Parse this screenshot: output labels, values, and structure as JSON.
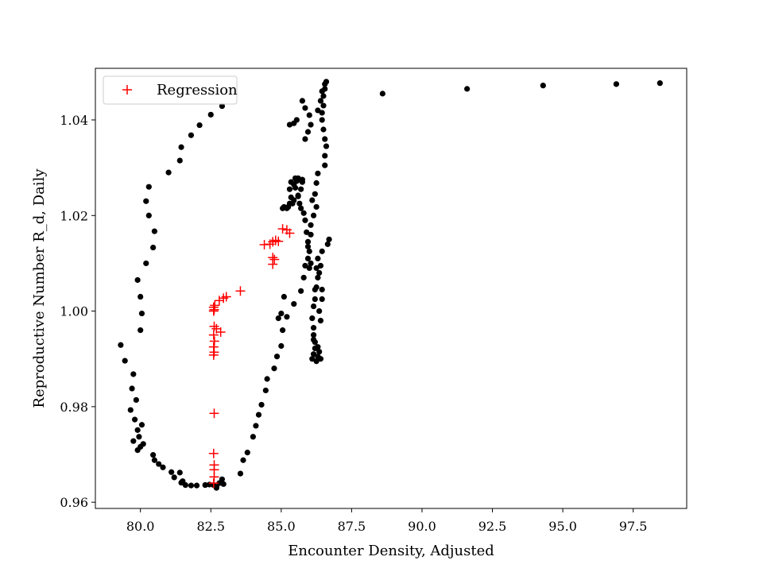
{
  "chart_data": {
    "type": "scatter",
    "xlabel": "Encounter Density, Adjusted",
    "ylabel": "Reproductive Number R_d, Daily",
    "xlim": [
      78.4,
      99.4
    ],
    "ylim": [
      0.9587,
      1.0508
    ],
    "xticks": [
      "80.0",
      "82.5",
      "85.0",
      "87.5",
      "90.0",
      "92.5",
      "95.0",
      "97.5"
    ],
    "xtick_values": [
      80.0,
      82.5,
      85.0,
      87.5,
      90.0,
      92.5,
      95.0,
      97.5
    ],
    "yticks": [
      "0.96",
      "0.98",
      "1.00",
      "1.02",
      "1.04"
    ],
    "ytick_values": [
      0.96,
      0.98,
      1.0,
      1.02,
      1.04
    ],
    "grid": false,
    "legend": {
      "position": "top-left",
      "entries": [
        "Regression"
      ]
    },
    "series": [
      {
        "name": "",
        "marker": "circle",
        "color": "#000000",
        "points": [
          [
            79.3,
            0.9929
          ],
          [
            79.45,
            0.9896
          ],
          [
            79.65,
            0.9793
          ],
          [
            79.7,
            0.9838
          ],
          [
            79.75,
            0.9868
          ],
          [
            79.8,
            0.9773
          ],
          [
            79.85,
            0.9814
          ],
          [
            79.9,
            0.9751
          ],
          [
            79.95,
            0.9737
          ],
          [
            80.05,
            0.9762
          ],
          [
            79.75,
            0.9728
          ],
          [
            79.9,
            0.9709
          ],
          [
            80.0,
            0.9716
          ],
          [
            80.1,
            0.9722
          ],
          [
            80.45,
            0.9699
          ],
          [
            80.5,
            0.9688
          ],
          [
            80.65,
            0.968
          ],
          [
            80.8,
            0.9673
          ],
          [
            81.1,
            0.9663
          ],
          [
            81.2,
            0.9652
          ],
          [
            81.4,
            0.9662
          ],
          [
            81.5,
            0.9644
          ],
          [
            81.45,
            0.9641
          ],
          [
            81.6,
            0.9636
          ],
          [
            81.8,
            0.9635
          ],
          [
            82.0,
            0.9635
          ],
          [
            82.3,
            0.9636
          ],
          [
            82.45,
            0.9637
          ],
          [
            82.6,
            0.9636
          ],
          [
            82.7,
            0.9632
          ],
          [
            82.8,
            0.964
          ],
          [
            82.9,
            0.9648
          ],
          [
            82.95,
            0.9638
          ],
          [
            82.7,
            0.963
          ],
          [
            83.55,
            0.966
          ],
          [
            83.65,
            0.9688
          ],
          [
            83.8,
            0.9704
          ],
          [
            84.0,
            0.9737
          ],
          [
            84.1,
            0.976
          ],
          [
            84.2,
            0.9783
          ],
          [
            84.3,
            0.9804
          ],
          [
            84.45,
            0.9834
          ],
          [
            84.5,
            0.9858
          ],
          [
            84.75,
            0.988
          ],
          [
            84.85,
            0.9905
          ],
          [
            85.0,
            0.9927
          ],
          [
            85.05,
            0.996
          ],
          [
            85.2,
            0.9988
          ],
          [
            85.45,
            1.0015
          ],
          [
            85.7,
            1.0042
          ],
          [
            85.8,
            1.007
          ],
          [
            85.85,
            1.0095
          ],
          [
            85.95,
            1.0135
          ],
          [
            86.05,
            1.016
          ],
          [
            86.05,
            1.018
          ],
          [
            86.15,
            1.02
          ],
          [
            86.25,
            1.0218
          ],
          [
            86.1,
            1.0232
          ],
          [
            86.2,
            1.0245
          ],
          [
            86.25,
            1.0268
          ],
          [
            86.3,
            1.0288
          ],
          [
            86.55,
            1.0305
          ],
          [
            86.55,
            1.0325
          ],
          [
            86.6,
            1.0345
          ],
          [
            86.55,
            1.036
          ],
          [
            86.5,
            1.038
          ],
          [
            86.45,
            1.04
          ],
          [
            86.45,
            1.0415
          ],
          [
            86.5,
            1.043
          ],
          [
            86.5,
            1.045
          ],
          [
            86.55,
            1.0465
          ],
          [
            86.6,
            1.048
          ],
          [
            86.55,
            1.0475
          ],
          [
            86.45,
            1.046
          ],
          [
            86.4,
            1.044
          ],
          [
            86.3,
            1.042
          ],
          [
            86.3,
            1.011
          ],
          [
            86.25,
            1.009
          ],
          [
            86.3,
            1.007
          ],
          [
            86.2,
            1.0045
          ],
          [
            86.2,
            1.0025
          ],
          [
            86.15,
            1.001
          ],
          [
            86.1,
            0.9985
          ],
          [
            86.15,
            0.9965
          ],
          [
            86.15,
            0.995
          ],
          [
            86.2,
            0.9935
          ],
          [
            86.3,
            0.9925
          ],
          [
            86.35,
            0.9915
          ],
          [
            86.3,
            0.9905
          ],
          [
            86.4,
            0.99
          ],
          [
            86.25,
            0.9895
          ],
          [
            86.1,
            0.99
          ],
          [
            86.15,
            0.991
          ],
          [
            86.2,
            0.9922
          ],
          [
            86.15,
            0.994
          ],
          [
            86.0,
            1.009
          ],
          [
            85.95,
            1.011
          ],
          [
            86.0,
            1.0125
          ],
          [
            85.95,
            1.0145
          ],
          [
            85.9,
            1.0165
          ],
          [
            85.85,
            1.019
          ],
          [
            85.8,
            1.0205
          ],
          [
            85.7,
            1.0215
          ],
          [
            85.65,
            1.0225
          ],
          [
            85.6,
            1.0242
          ],
          [
            85.5,
            1.0258
          ],
          [
            85.45,
            1.0265
          ],
          [
            85.55,
            1.0272
          ],
          [
            85.65,
            1.0275
          ],
          [
            85.75,
            1.027
          ],
          [
            85.7,
            1.0255
          ],
          [
            85.6,
            1.024
          ],
          [
            85.45,
            1.0232
          ],
          [
            85.3,
            1.0225
          ],
          [
            85.2,
            1.0215
          ],
          [
            85.05,
            1.0215
          ],
          [
            85.1,
            1.0218
          ],
          [
            85.25,
            1.0218
          ],
          [
            85.4,
            1.0225
          ],
          [
            85.35,
            1.0238
          ],
          [
            85.3,
            1.0255
          ],
          [
            85.35,
            1.027
          ],
          [
            85.5,
            1.0278
          ],
          [
            85.6,
            1.0278
          ],
          [
            85.75,
            1.0275
          ],
          [
            85.85,
            1.036
          ],
          [
            85.95,
            1.0375
          ],
          [
            86.05,
            1.039
          ],
          [
            86.0,
            1.041
          ],
          [
            85.85,
            1.0425
          ],
          [
            85.75,
            1.044
          ],
          [
            85.55,
            1.04
          ],
          [
            85.45,
            1.0393
          ],
          [
            85.3,
            1.039
          ],
          [
            86.4,
            0.998
          ],
          [
            86.35,
            1.0
          ],
          [
            86.45,
            1.0025
          ],
          [
            86.45,
            1.0045
          ],
          [
            86.35,
            1.008
          ],
          [
            86.4,
            1.0095
          ],
          [
            86.45,
            1.0125
          ],
          [
            86.25,
            1.005
          ],
          [
            86.05,
            1.01
          ],
          [
            86.7,
            1.015
          ],
          [
            86.65,
            1.014
          ],
          [
            85.1,
            1.003
          ],
          [
            85.0,
            0.9995
          ],
          [
            84.9,
            0.9985
          ],
          [
            79.9,
            1.0065
          ],
          [
            80.0,
            1.003
          ],
          [
            80.05,
            0.9995
          ],
          [
            80.0,
            0.996
          ],
          [
            80.2,
            1.01
          ],
          [
            80.45,
            1.0133
          ],
          [
            80.5,
            1.0167
          ],
          [
            80.3,
            1.02
          ],
          [
            80.2,
            1.023
          ],
          [
            80.3,
            1.026
          ],
          [
            81.0,
            1.029
          ],
          [
            81.4,
            1.0315
          ],
          [
            81.45,
            1.0343
          ],
          [
            81.8,
            1.0368
          ],
          [
            82.1,
            1.0389
          ],
          [
            82.5,
            1.0411
          ],
          [
            82.9,
            1.0429
          ],
          [
            88.6,
            1.0455
          ],
          [
            91.6,
            1.0465
          ],
          [
            94.3,
            1.0472
          ],
          [
            96.9,
            1.0475
          ],
          [
            98.45,
            1.0477
          ]
        ]
      },
      {
        "name": "Regression",
        "marker": "plus",
        "color": "#ff0000",
        "points": [
          [
            82.6,
            0.964
          ],
          [
            82.62,
            0.9653
          ],
          [
            82.62,
            0.9668
          ],
          [
            82.62,
            0.9678
          ],
          [
            82.6,
            0.9702
          ],
          [
            82.62,
            0.9786
          ],
          [
            82.6,
            0.9908
          ],
          [
            82.62,
            0.9914
          ],
          [
            82.6,
            0.9925
          ],
          [
            82.63,
            0.9937
          ],
          [
            82.6,
            0.995
          ],
          [
            82.7,
            0.9963
          ],
          [
            82.62,
            0.9968
          ],
          [
            82.85,
            0.9956
          ],
          [
            82.6,
            1.0
          ],
          [
            82.62,
            1.0003
          ],
          [
            82.6,
            1.0008
          ],
          [
            82.64,
            1.0012
          ],
          [
            82.8,
            1.0022
          ],
          [
            82.95,
            1.0027
          ],
          [
            83.05,
            1.003
          ],
          [
            83.55,
            1.0042
          ],
          [
            84.4,
            1.0139
          ],
          [
            84.6,
            1.014
          ],
          [
            84.7,
            1.0145
          ],
          [
            84.8,
            1.0148
          ],
          [
            84.9,
            1.0146
          ],
          [
            84.7,
            1.0098
          ],
          [
            84.76,
            1.0108
          ],
          [
            84.7,
            1.0112
          ],
          [
            85.05,
            1.0172
          ],
          [
            85.2,
            1.017
          ],
          [
            85.3,
            1.0163
          ]
        ]
      }
    ]
  }
}
